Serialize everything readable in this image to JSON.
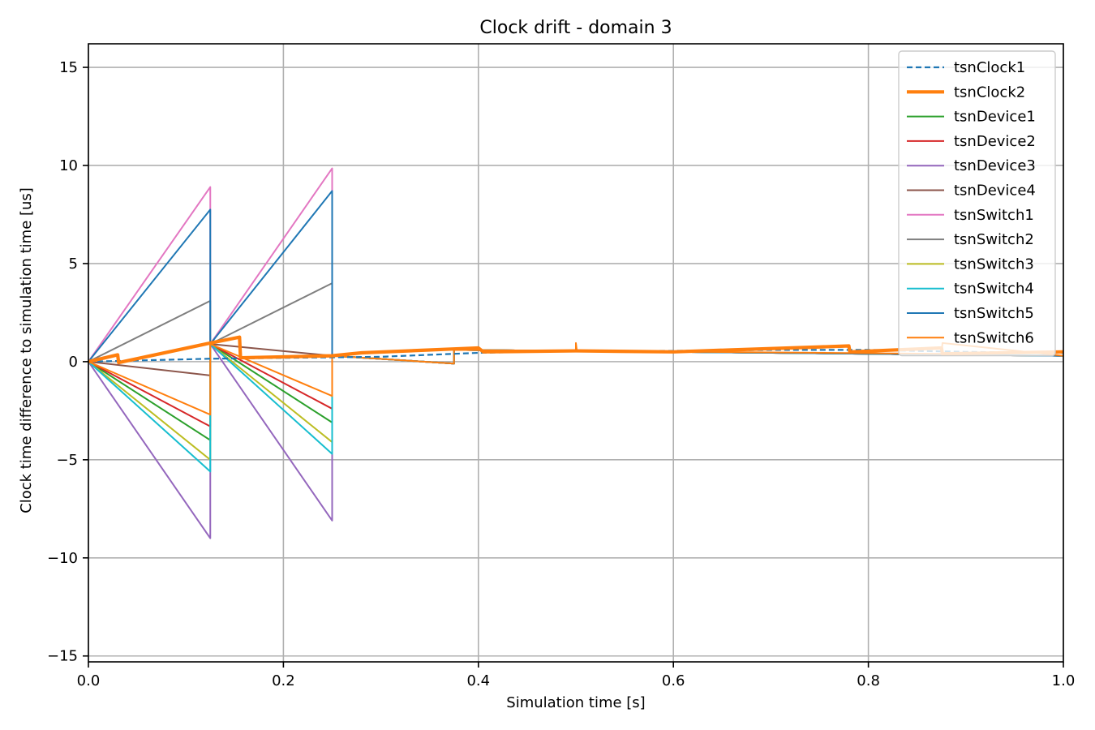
{
  "chart_data": {
    "type": "line",
    "title": "Clock drift - domain 3",
    "xlabel": "Simulation time [s]",
    "ylabel": "Clock time difference to simulation time [us]",
    "xlim": [
      0.0,
      1.0
    ],
    "ylim": [
      -15.3,
      16.2
    ],
    "xticks": [
      0.0,
      0.2,
      0.4,
      0.6,
      0.8,
      1.0
    ],
    "xtick_labels": [
      "0.0",
      "0.2",
      "0.4",
      "0.6",
      "0.8",
      "1.0"
    ],
    "yticks": [
      -15,
      -10,
      -5,
      0,
      5,
      10,
      15
    ],
    "ytick_labels": [
      "−15",
      "−10",
      "−5",
      "0",
      "5",
      "10",
      "15"
    ],
    "grid": true,
    "legend_position": "top-right",
    "series": [
      {
        "name": "tsnClock1",
        "color": "#1f77b4",
        "style": "dashed",
        "width": 2.2,
        "points": [
          [
            0.0,
            0.0
          ],
          [
            0.125,
            0.15
          ],
          [
            0.3,
            0.25
          ],
          [
            0.4,
            0.45
          ],
          [
            0.5,
            0.55
          ],
          [
            0.6,
            0.55
          ],
          [
            0.7,
            0.6
          ],
          [
            0.8,
            0.6
          ],
          [
            0.9,
            0.5
          ],
          [
            1.0,
            0.45
          ]
        ]
      },
      {
        "name": "tsnClock2",
        "color": "#ff7f0e",
        "style": "solid",
        "width": 4.2,
        "points": [
          [
            0.0,
            0.0
          ],
          [
            0.03,
            0.35
          ],
          [
            0.031,
            -0.05
          ],
          [
            0.125,
            0.95
          ],
          [
            0.155,
            1.25
          ],
          [
            0.156,
            0.2
          ],
          [
            0.25,
            0.3
          ],
          [
            0.28,
            0.45
          ],
          [
            0.4,
            0.7
          ],
          [
            0.405,
            0.5
          ],
          [
            0.5,
            0.55
          ],
          [
            0.6,
            0.5
          ],
          [
            0.66,
            0.6
          ],
          [
            0.75,
            0.75
          ],
          [
            0.78,
            0.8
          ],
          [
            0.781,
            0.5
          ],
          [
            0.875,
            0.7
          ],
          [
            0.876,
            0.4
          ],
          [
            1.0,
            0.5
          ]
        ]
      },
      {
        "name": "tsnDevice1",
        "color": "#2ca02c",
        "style": "solid",
        "width": 2,
        "points": [
          [
            0.0,
            0.0
          ],
          [
            0.125,
            -4.0
          ],
          [
            0.125,
            0.9
          ],
          [
            0.25,
            -3.1
          ],
          [
            0.25,
            0.3
          ],
          [
            0.375,
            -0.1
          ],
          [
            0.375,
            0.6
          ],
          [
            0.5,
            0.55
          ],
          [
            1.0,
            0.3
          ]
        ]
      },
      {
        "name": "tsnDevice2",
        "color": "#d62728",
        "style": "solid",
        "width": 2,
        "points": [
          [
            0.0,
            0.0
          ],
          [
            0.125,
            -3.3
          ],
          [
            0.125,
            0.9
          ],
          [
            0.25,
            -2.4
          ],
          [
            0.25,
            0.3
          ],
          [
            0.375,
            -0.1
          ],
          [
            0.375,
            0.6
          ],
          [
            0.5,
            0.55
          ],
          [
            1.0,
            0.3
          ]
        ]
      },
      {
        "name": "tsnDevice3",
        "color": "#9467bd",
        "style": "solid",
        "width": 2,
        "points": [
          [
            0.0,
            0.0
          ],
          [
            0.125,
            -9.0
          ],
          [
            0.125,
            0.9
          ],
          [
            0.25,
            -8.1
          ],
          [
            0.25,
            0.3
          ],
          [
            0.375,
            -0.1
          ],
          [
            0.375,
            0.6
          ],
          [
            0.5,
            0.55
          ],
          [
            1.0,
            0.3
          ]
        ]
      },
      {
        "name": "tsnDevice4",
        "color": "#8c564b",
        "style": "solid",
        "width": 2,
        "points": [
          [
            0.0,
            0.0
          ],
          [
            0.125,
            -0.7
          ],
          [
            0.125,
            0.9
          ],
          [
            0.25,
            0.3
          ],
          [
            0.375,
            -0.1
          ],
          [
            0.375,
            0.6
          ],
          [
            0.5,
            0.55
          ],
          [
            1.0,
            0.3
          ]
        ]
      },
      {
        "name": "tsnSwitch1",
        "color": "#e377c2",
        "style": "solid",
        "width": 2,
        "points": [
          [
            0.0,
            0.0
          ],
          [
            0.125,
            8.9
          ],
          [
            0.125,
            0.9
          ],
          [
            0.25,
            9.85
          ],
          [
            0.25,
            0.3
          ],
          [
            0.375,
            -0.1
          ],
          [
            0.375,
            0.6
          ],
          [
            0.5,
            0.55
          ],
          [
            1.0,
            0.3
          ]
        ]
      },
      {
        "name": "tsnSwitch2",
        "color": "#7f7f7f",
        "style": "solid",
        "width": 2,
        "points": [
          [
            0.0,
            0.0
          ],
          [
            0.125,
            3.1
          ],
          [
            0.125,
            0.9
          ],
          [
            0.25,
            4.0
          ],
          [
            0.25,
            0.3
          ],
          [
            0.375,
            -0.1
          ],
          [
            0.375,
            0.6
          ],
          [
            0.5,
            0.55
          ],
          [
            1.0,
            0.3
          ]
        ]
      },
      {
        "name": "tsnSwitch3",
        "color": "#bcbd22",
        "style": "solid",
        "width": 2,
        "points": [
          [
            0.0,
            0.0
          ],
          [
            0.125,
            -5.0
          ],
          [
            0.125,
            0.9
          ],
          [
            0.25,
            -4.1
          ],
          [
            0.25,
            0.3
          ],
          [
            0.375,
            -0.1
          ],
          [
            0.375,
            0.6
          ],
          [
            0.5,
            0.55
          ],
          [
            1.0,
            0.3
          ]
        ]
      },
      {
        "name": "tsnSwitch4",
        "color": "#17becf",
        "style": "solid",
        "width": 2,
        "points": [
          [
            0.0,
            0.0
          ],
          [
            0.125,
            -5.6
          ],
          [
            0.125,
            0.9
          ],
          [
            0.25,
            -4.7
          ],
          [
            0.25,
            0.3
          ],
          [
            0.375,
            -0.1
          ],
          [
            0.375,
            0.6
          ],
          [
            0.5,
            0.55
          ],
          [
            1.0,
            0.3
          ]
        ]
      },
      {
        "name": "tsnSwitch5",
        "color": "#1f77b4",
        "style": "solid",
        "width": 2,
        "points": [
          [
            0.0,
            0.0
          ],
          [
            0.125,
            7.75
          ],
          [
            0.125,
            0.9
          ],
          [
            0.25,
            8.7
          ],
          [
            0.25,
            0.3
          ],
          [
            0.375,
            -0.1
          ],
          [
            0.375,
            0.6
          ],
          [
            0.5,
            0.55
          ],
          [
            1.0,
            0.3
          ]
        ]
      },
      {
        "name": "tsnSwitch6",
        "color": "#ff7f0e",
        "style": "solid",
        "width": 2,
        "points": [
          [
            0.0,
            0.0
          ],
          [
            0.125,
            -2.7
          ],
          [
            0.125,
            0.9
          ],
          [
            0.25,
            -1.75
          ],
          [
            0.25,
            0.3
          ],
          [
            0.375,
            -0.1
          ],
          [
            0.375,
            0.6
          ],
          [
            0.5,
            0.55
          ],
          [
            0.5,
            0.95
          ],
          [
            0.501,
            0.55
          ],
          [
            0.875,
            0.4
          ],
          [
            0.876,
            0.95
          ],
          [
            1.0,
            0.3
          ]
        ]
      }
    ]
  }
}
